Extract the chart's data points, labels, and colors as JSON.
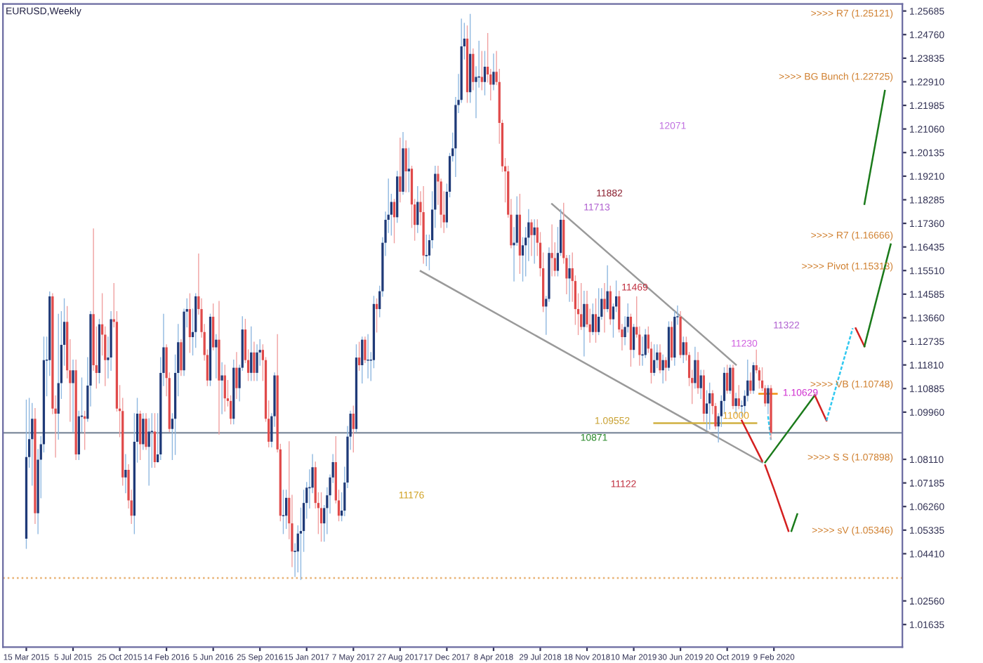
{
  "chart_data": {
    "type": "candlestick",
    "title": "EURUSD,Weekly",
    "xlim": [
      "2015-01-18",
      "2020-12-13"
    ],
    "ylim": [
      1.0075,
      1.2596
    ],
    "xticks": [
      {
        "value": "2015-03-15",
        "label": "15 Mar 2015"
      },
      {
        "value": "2015-07-05",
        "label": "5 Jul 2015"
      },
      {
        "value": "2015-10-25",
        "label": "25 Oct 2015"
      },
      {
        "value": "2016-02-14",
        "label": "14 Feb 2016"
      },
      {
        "value": "2016-06-05",
        "label": "5 Jun 2016"
      },
      {
        "value": "2016-09-25",
        "label": "25 Sep 2016"
      },
      {
        "value": "2017-01-15",
        "label": "15 Jan 2017"
      },
      {
        "value": "2017-05-07",
        "label": "7 May 2017"
      },
      {
        "value": "2017-08-27",
        "label": "27 Aug 2017"
      },
      {
        "value": "2017-12-17",
        "label": "17 Dec 2017"
      },
      {
        "value": "2018-04-08",
        "label": "8 Apr 2018"
      },
      {
        "value": "2018-07-29",
        "label": "29 Jul 2018"
      },
      {
        "value": "2018-11-18",
        "label": "18 Nov 2018"
      },
      {
        "value": "2019-03-10",
        "label": "10 Mar 2019"
      },
      {
        "value": "2019-06-30",
        "label": "30 Jun 2019"
      },
      {
        "value": "2019-10-20",
        "label": "20 Oct 2019"
      },
      {
        "value": "2020-02-09",
        "label": "9 Feb 2020"
      }
    ],
    "yticks": [
      {
        "value": 1.25685,
        "label": "1.25685"
      },
      {
        "value": 1.2476,
        "label": "1.24760"
      },
      {
        "value": 1.23835,
        "label": "1.23835"
      },
      {
        "value": 1.2291,
        "label": "1.22910"
      },
      {
        "value": 1.21985,
        "label": "1.21985"
      },
      {
        "value": 1.2106,
        "label": "1.21060"
      },
      {
        "value": 1.20135,
        "label": "1.20135"
      },
      {
        "value": 1.1921,
        "label": "1.19210"
      },
      {
        "value": 1.18285,
        "label": "1.18285"
      },
      {
        "value": 1.1736,
        "label": "1.17360"
      },
      {
        "value": 1.16435,
        "label": "1.16435"
      },
      {
        "value": 1.1551,
        "label": "1.15510"
      },
      {
        "value": 1.14585,
        "label": "1.14585"
      },
      {
        "value": 1.1366,
        "label": "1.13660"
      },
      {
        "value": 1.12735,
        "label": "1.12735"
      },
      {
        "value": 1.1181,
        "label": "1.11810"
      },
      {
        "value": 1.10885,
        "label": "1.10885"
      },
      {
        "value": 1.0996,
        "label": "1.09960"
      },
      {
        "value": 1.0811,
        "label": "1.08110"
      },
      {
        "value": 1.07185,
        "label": "1.07185"
      },
      {
        "value": 1.0626,
        "label": "1.06260"
      },
      {
        "value": 1.05335,
        "label": "1.05335"
      },
      {
        "value": 1.0441,
        "label": "1.04410"
      },
      {
        "value": 1.0256,
        "label": "1.02560"
      },
      {
        "value": 1.01635,
        "label": "1.01635"
      }
    ],
    "grid": false,
    "legend": false,
    "ref_lines": [
      {
        "axis": "y",
        "value": 1.0915,
        "color": "#8a96a6",
        "line_style": "solid"
      },
      {
        "axis": "y",
        "value": 1.0346,
        "color": "#e8b070",
        "line_style": "dotted"
      }
    ],
    "annotations": [
      "11882",
      "11713",
      "12071",
      "11469",
      "11322",
      "11230",
      {
        "text": "11000",
        "x": "2019-11-10",
        "y": 1.098
      },
      "10871",
      "11122",
      "11176",
      "1.09552",
      "1.10629",
      ">>>> R7 (1.25121)",
      ">>>> BG Bunch (1.22725)",
      ">>>> R7 (1.16666)",
      ">>>> Pivot (1.15313)",
      ">>>> VB (1.10748)",
      ">>>> S S (1.07898)",
      ">>>> sV (1.05346)"
    ],
    "series": [
      {
        "type": "line",
        "color": "#9a9a9a",
        "line_style": "solid",
        "x": [
          "2018-08-26",
          "2019-11-10"
        ],
        "values": [
          1.1812,
          1.1182
        ]
      },
      {
        "type": "line",
        "color": "#9a9a9a",
        "line_style": "solid",
        "x": [
          "2017-10-15",
          "2020-01-12"
        ],
        "values": [
          1.1549,
          1.0799
        ]
      },
      {
        "type": "line",
        "color": "#d0b040",
        "line_style": "solid",
        "x": [
          "2019-04-28",
          "2019-12-29"
        ],
        "values": [
          1.0953,
          1.0953
        ]
      },
      {
        "type": "line",
        "color": "#f09010",
        "line_style": "solid",
        "x": [
          "2020-01-05",
          "2020-02-16"
        ],
        "values": [
          1.1068,
          1.1068
        ]
      },
      {
        "type": "line",
        "color": "#d42020",
        "line_style": "solid",
        "x": [
          "2019-11-24",
          "2020-01-12"
        ],
        "values": [
          1.0963,
          1.0804
        ]
      },
      {
        "type": "line",
        "color": "#d42020",
        "line_style": "solid",
        "x": [
          "2020-01-19",
          "2020-02-09",
          "2020-03-15"
        ],
        "values": [
          1.0788,
          1.0695,
          1.053
        ]
      },
      {
        "type": "line",
        "color": "#1a7a1a",
        "line_style": "solid",
        "x": [
          "2020-03-22",
          "2020-04-05"
        ],
        "values": [
          1.053,
          1.0596
        ]
      },
      {
        "type": "line",
        "color": "#1a7a1a",
        "line_style": "solid",
        "x": [
          "2020-01-19",
          "2020-05-17"
        ],
        "values": [
          1.0799,
          1.1062
        ]
      },
      {
        "type": "line",
        "color": "#d42020",
        "line_style": "solid",
        "x": [
          "2020-05-17",
          "2020-06-14"
        ],
        "values": [
          1.1062,
          1.0963
        ]
      },
      {
        "type": "line",
        "color": "#30c8f0",
        "line_style": "dashed",
        "x": [
          "2020-06-14",
          "2020-08-16"
        ],
        "values": [
          1.0963,
          1.1325
        ]
      },
      {
        "type": "line",
        "color": "#d42020",
        "line_style": "solid",
        "x": [
          "2020-08-23",
          "2020-09-13"
        ],
        "values": [
          1.1325,
          1.1254
        ]
      },
      {
        "type": "line",
        "color": "#1a7a1a",
        "line_style": "solid",
        "x": [
          "2020-09-13",
          "2020-11-15"
        ],
        "values": [
          1.1254,
          1.1654
        ]
      },
      {
        "type": "line",
        "color": "#1a7a1a",
        "line_style": "solid",
        "x": [
          "2020-09-13",
          "2020-11-01"
        ],
        "values": [
          1.1812,
          1.2256
        ]
      },
      {
        "type": "line",
        "color": "#30c8f0",
        "line_style": "dashed",
        "x": [
          "2020-01-26",
          "2020-02-02"
        ],
        "values": [
          1.098,
          1.0887
        ]
      }
    ],
    "x": [
      "2015-03-15",
      "2015-03-22",
      "2015-03-29",
      "2015-04-05",
      "2015-04-12",
      "2015-04-19",
      "2015-04-26",
      "2015-05-03",
      "2015-05-10",
      "2015-05-17",
      "2015-05-24",
      "2015-05-31",
      "2015-06-07",
      "2015-06-14",
      "2015-06-21",
      "2015-06-28",
      "2015-07-05",
      "2015-07-12",
      "2015-07-19",
      "2015-07-26",
      "2015-08-02",
      "2015-08-09",
      "2015-08-16",
      "2015-08-23",
      "2015-08-30",
      "2015-09-06",
      "2015-09-13",
      "2015-09-20",
      "2015-09-27",
      "2015-10-04",
      "2015-10-11",
      "2015-10-18",
      "2015-10-25",
      "2015-11-01",
      "2015-11-08",
      "2015-11-15",
      "2015-11-22",
      "2015-11-29",
      "2015-12-06",
      "2015-12-13",
      "2015-12-20",
      "2015-12-27",
      "2016-01-03",
      "2016-01-10",
      "2016-01-17",
      "2016-01-24",
      "2016-01-31",
      "2016-02-07",
      "2016-02-14",
      "2016-02-21",
      "2016-02-28",
      "2016-03-06",
      "2016-03-13",
      "2016-03-20",
      "2016-03-27",
      "2016-04-03",
      "2016-04-10",
      "2016-04-17",
      "2016-04-24",
      "2016-05-01",
      "2016-05-08",
      "2016-05-15",
      "2016-05-22",
      "2016-05-29",
      "2016-06-05",
      "2016-06-12",
      "2016-06-19",
      "2016-06-26",
      "2016-07-03",
      "2016-07-10",
      "2016-07-17",
      "2016-07-24",
      "2016-07-31",
      "2016-08-07",
      "2016-08-14",
      "2016-08-21",
      "2016-08-28",
      "2016-09-04",
      "2016-09-11",
      "2016-09-18",
      "2016-09-25",
      "2016-10-02",
      "2016-10-09",
      "2016-10-16",
      "2016-10-23",
      "2016-10-30",
      "2016-11-06",
      "2016-11-13",
      "2016-11-20",
      "2016-11-27",
      "2016-12-04",
      "2016-12-11",
      "2016-12-18",
      "2016-12-25",
      "2017-01-01",
      "2017-01-08",
      "2017-01-15",
      "2017-01-22",
      "2017-01-29",
      "2017-02-05",
      "2017-02-12",
      "2017-02-19",
      "2017-02-26",
      "2017-03-05",
      "2017-03-12",
      "2017-03-19",
      "2017-03-26",
      "2017-04-02",
      "2017-04-09",
      "2017-04-16",
      "2017-04-23",
      "2017-04-30",
      "2017-05-07",
      "2017-05-14",
      "2017-05-21",
      "2017-05-28",
      "2017-06-04",
      "2017-06-11",
      "2017-06-18",
      "2017-06-25",
      "2017-07-02",
      "2017-07-09",
      "2017-07-16",
      "2017-07-23",
      "2017-07-30",
      "2017-08-06",
      "2017-08-13",
      "2017-08-20",
      "2017-08-27",
      "2017-09-03",
      "2017-09-10",
      "2017-09-17",
      "2017-09-24",
      "2017-10-01",
      "2017-10-08",
      "2017-10-15",
      "2017-10-22",
      "2017-10-29",
      "2017-11-05",
      "2017-11-12",
      "2017-11-19",
      "2017-11-26",
      "2017-12-03",
      "2017-12-10",
      "2017-12-17",
      "2017-12-24",
      "2017-12-31",
      "2018-01-07",
      "2018-01-14",
      "2018-01-21",
      "2018-01-28",
      "2018-02-04",
      "2018-02-11",
      "2018-02-18",
      "2018-02-25",
      "2018-03-04",
      "2018-03-11",
      "2018-03-18",
      "2018-03-25",
      "2018-04-01",
      "2018-04-08",
      "2018-04-15",
      "2018-04-22",
      "2018-04-29",
      "2018-05-06",
      "2018-05-13",
      "2018-05-20",
      "2018-05-27",
      "2018-06-03",
      "2018-06-10",
      "2018-06-17",
      "2018-06-24",
      "2018-07-01",
      "2018-07-08",
      "2018-07-15",
      "2018-07-22",
      "2018-07-29",
      "2018-08-05",
      "2018-08-12",
      "2018-08-19",
      "2018-08-26",
      "2018-09-02",
      "2018-09-09",
      "2018-09-16",
      "2018-09-23",
      "2018-09-30",
      "2018-10-07",
      "2018-10-14",
      "2018-10-21",
      "2018-10-28",
      "2018-11-04",
      "2018-11-11",
      "2018-11-18",
      "2018-11-25",
      "2018-12-02",
      "2018-12-09",
      "2018-12-16",
      "2018-12-23",
      "2018-12-30",
      "2019-01-06",
      "2019-01-13",
      "2019-01-20",
      "2019-01-27",
      "2019-02-03",
      "2019-02-10",
      "2019-02-17",
      "2019-02-24",
      "2019-03-03",
      "2019-03-10",
      "2019-03-17",
      "2019-03-24",
      "2019-03-31",
      "2019-04-07",
      "2019-04-14",
      "2019-04-21",
      "2019-04-28",
      "2019-05-05",
      "2019-05-12",
      "2019-05-19",
      "2019-05-26",
      "2019-06-02",
      "2019-06-09",
      "2019-06-16",
      "2019-06-23",
      "2019-06-30",
      "2019-07-07",
      "2019-07-14",
      "2019-07-21",
      "2019-07-28",
      "2019-08-04",
      "2019-08-11",
      "2019-08-18",
      "2019-08-25",
      "2019-09-01",
      "2019-09-08",
      "2019-09-15",
      "2019-09-22",
      "2019-09-29",
      "2019-10-06",
      "2019-10-13",
      "2019-10-20",
      "2019-10-27",
      "2019-11-03",
      "2019-11-10",
      "2019-11-17",
      "2019-11-24",
      "2019-12-01",
      "2019-12-08",
      "2019-12-15",
      "2019-12-22",
      "2019-12-29",
      "2020-01-05",
      "2020-01-12",
      "2020-01-19",
      "2020-01-26",
      "2020-02-02"
    ],
    "ohlc": [
      [
        1.05,
        1.1043,
        1.0462,
        1.082
      ],
      [
        1.082,
        1.105,
        1.078,
        1.089
      ],
      [
        1.089,
        1.103,
        1.071,
        1.097
      ],
      [
        1.097,
        1.101,
        1.056,
        1.06
      ],
      [
        1.06,
        1.085,
        1.052,
        1.081
      ],
      [
        1.081,
        1.09,
        1.066,
        1.087
      ],
      [
        1.087,
        1.129,
        1.084,
        1.12
      ],
      [
        1.12,
        1.129,
        1.106,
        1.12
      ],
      [
        1.12,
        1.1467,
        1.114,
        1.145
      ],
      [
        1.145,
        1.146,
        1.099,
        1.101
      ],
      [
        1.101,
        1.106,
        1.082,
        1.099
      ],
      [
        1.099,
        1.138,
        1.089,
        1.111
      ],
      [
        1.111,
        1.139,
        1.105,
        1.126
      ],
      [
        1.126,
        1.144,
        1.118,
        1.135
      ],
      [
        1.135,
        1.141,
        1.113,
        1.116
      ],
      [
        1.116,
        1.128,
        1.096,
        1.111
      ],
      [
        1.111,
        1.12,
        1.092,
        1.116
      ],
      [
        1.116,
        1.12,
        1.081,
        1.083
      ],
      [
        1.083,
        1.1,
        1.081,
        1.098
      ],
      [
        1.098,
        1.113,
        1.092,
        1.098
      ],
      [
        1.098,
        1.1,
        1.085,
        1.097
      ],
      [
        1.097,
        1.121,
        1.096,
        1.11
      ],
      [
        1.11,
        1.139,
        1.102,
        1.138
      ],
      [
        1.138,
        1.1714,
        1.116,
        1.118
      ],
      [
        1.118,
        1.133,
        1.109,
        1.115
      ],
      [
        1.115,
        1.136,
        1.111,
        1.134
      ],
      [
        1.134,
        1.146,
        1.122,
        1.13
      ],
      [
        1.13,
        1.133,
        1.11,
        1.12
      ],
      [
        1.12,
        1.129,
        1.113,
        1.121
      ],
      [
        1.121,
        1.139,
        1.116,
        1.136
      ],
      [
        1.136,
        1.15,
        1.133,
        1.135
      ],
      [
        1.135,
        1.139,
        1.1,
        1.101
      ],
      [
        1.101,
        1.11,
        1.09,
        1.1
      ],
      [
        1.1,
        1.105,
        1.071,
        1.074
      ],
      [
        1.074,
        1.083,
        1.068,
        1.077
      ],
      [
        1.077,
        1.079,
        1.062,
        1.065
      ],
      [
        1.065,
        1.069,
        1.056,
        1.059
      ],
      [
        1.059,
        1.099,
        1.052,
        1.088
      ],
      [
        1.088,
        1.105,
        1.08,
        1.099
      ],
      [
        1.099,
        1.1,
        1.081,
        1.087
      ],
      [
        1.087,
        1.099,
        1.085,
        1.097
      ],
      [
        1.097,
        1.099,
        1.085,
        1.086
      ],
      [
        1.086,
        1.097,
        1.071,
        1.092
      ],
      [
        1.092,
        1.099,
        1.078,
        1.092
      ],
      [
        1.092,
        1.099,
        1.078,
        1.08
      ],
      [
        1.08,
        1.099,
        1.08,
        1.083
      ],
      [
        1.083,
        1.121,
        1.081,
        1.115
      ],
      [
        1.115,
        1.138,
        1.11,
        1.125
      ],
      [
        1.125,
        1.126,
        1.106,
        1.113
      ],
      [
        1.113,
        1.115,
        1.092,
        1.093
      ],
      [
        1.093,
        1.099,
        1.081,
        1.097
      ],
      [
        1.097,
        1.122,
        1.083,
        1.115
      ],
      [
        1.115,
        1.134,
        1.106,
        1.127
      ],
      [
        1.127,
        1.128,
        1.114,
        1.116
      ],
      [
        1.116,
        1.14,
        1.114,
        1.139
      ],
      [
        1.139,
        1.144,
        1.133,
        1.14
      ],
      [
        1.14,
        1.146,
        1.123,
        1.129
      ],
      [
        1.129,
        1.14,
        1.122,
        1.131
      ],
      [
        1.131,
        1.146,
        1.125,
        1.145
      ],
      [
        1.145,
        1.1616,
        1.138,
        1.14
      ],
      [
        1.14,
        1.144,
        1.129,
        1.131
      ],
      [
        1.131,
        1.134,
        1.12,
        1.122
      ],
      [
        1.122,
        1.124,
        1.11,
        1.112
      ],
      [
        1.112,
        1.138,
        1.11,
        1.137
      ],
      [
        1.137,
        1.142,
        1.124,
        1.125
      ],
      [
        1.125,
        1.13,
        1.113,
        1.128
      ],
      [
        1.128,
        1.143,
        1.091,
        1.112
      ],
      [
        1.112,
        1.119,
        1.099,
        1.114
      ],
      [
        1.114,
        1.118,
        1.1,
        1.105
      ],
      [
        1.105,
        1.112,
        1.102,
        1.104
      ],
      [
        1.104,
        1.106,
        1.095,
        1.097
      ],
      [
        1.097,
        1.12,
        1.095,
        1.117
      ],
      [
        1.117,
        1.123,
        1.105,
        1.109
      ],
      [
        1.109,
        1.118,
        1.104,
        1.117
      ],
      [
        1.117,
        1.137,
        1.116,
        1.132
      ],
      [
        1.132,
        1.136,
        1.119,
        1.12
      ],
      [
        1.12,
        1.124,
        1.112,
        1.115
      ],
      [
        1.115,
        1.133,
        1.112,
        1.123
      ],
      [
        1.123,
        1.127,
        1.112,
        1.115
      ],
      [
        1.115,
        1.126,
        1.112,
        1.123
      ],
      [
        1.123,
        1.128,
        1.118,
        1.124
      ],
      [
        1.124,
        1.126,
        1.112,
        1.12
      ],
      [
        1.12,
        1.121,
        1.096,
        1.097
      ],
      [
        1.097,
        1.104,
        1.086,
        1.088
      ],
      [
        1.088,
        1.099,
        1.086,
        1.098
      ],
      [
        1.098,
        1.115,
        1.094,
        1.114
      ],
      [
        1.114,
        1.13,
        1.084,
        1.085
      ],
      [
        1.085,
        1.087,
        1.057,
        1.059
      ],
      [
        1.059,
        1.069,
        1.052,
        1.059
      ],
      [
        1.059,
        1.069,
        1.054,
        1.066
      ],
      [
        1.066,
        1.088,
        1.05,
        1.056
      ],
      [
        1.056,
        1.067,
        1.039,
        1.045
      ],
      [
        1.045,
        1.048,
        1.0352,
        1.045
      ],
      [
        1.045,
        1.055,
        1.037,
        1.052
      ],
      [
        1.052,
        1.062,
        1.034,
        1.053
      ],
      [
        1.053,
        1.069,
        1.045,
        1.064
      ],
      [
        1.064,
        1.072,
        1.058,
        1.07
      ],
      [
        1.07,
        1.077,
        1.062,
        1.07
      ],
      [
        1.07,
        1.083,
        1.068,
        1.078
      ],
      [
        1.078,
        1.08,
        1.062,
        1.064
      ],
      [
        1.064,
        1.068,
        1.052,
        1.062
      ],
      [
        1.062,
        1.068,
        1.049,
        1.056
      ],
      [
        1.056,
        1.063,
        1.049,
        1.062
      ],
      [
        1.062,
        1.07,
        1.052,
        1.067
      ],
      [
        1.067,
        1.075,
        1.06,
        1.074
      ],
      [
        1.074,
        1.083,
        1.072,
        1.08
      ],
      [
        1.08,
        1.09,
        1.064,
        1.065
      ],
      [
        1.065,
        1.069,
        1.057,
        1.059
      ],
      [
        1.059,
        1.068,
        1.057,
        1.061
      ],
      [
        1.061,
        1.078,
        1.059,
        1.072
      ],
      [
        1.072,
        1.094,
        1.07,
        1.09
      ],
      [
        1.09,
        1.1,
        1.085,
        1.099
      ],
      [
        1.099,
        1.102,
        1.084,
        1.093
      ],
      [
        1.093,
        1.126,
        1.092,
        1.121
      ],
      [
        1.121,
        1.127,
        1.116,
        1.118
      ],
      [
        1.118,
        1.129,
        1.111,
        1.128
      ],
      [
        1.128,
        1.129,
        1.119,
        1.12
      ],
      [
        1.12,
        1.13,
        1.113,
        1.12
      ],
      [
        1.12,
        1.123,
        1.112,
        1.12
      ],
      [
        1.12,
        1.145,
        1.117,
        1.142
      ],
      [
        1.142,
        1.144,
        1.131,
        1.14
      ],
      [
        1.14,
        1.149,
        1.137,
        1.147
      ],
      [
        1.147,
        1.168,
        1.145,
        1.166
      ],
      [
        1.166,
        1.178,
        1.161,
        1.175
      ],
      [
        1.175,
        1.191,
        1.17,
        1.177
      ],
      [
        1.177,
        1.185,
        1.169,
        1.182
      ],
      [
        1.182,
        1.183,
        1.166,
        1.176
      ],
      [
        1.176,
        1.194,
        1.174,
        1.192
      ],
      [
        1.192,
        1.207,
        1.182,
        1.186
      ],
      [
        1.186,
        1.2092,
        1.185,
        1.203
      ],
      [
        1.203,
        1.206,
        1.186,
        1.194
      ],
      [
        1.194,
        1.203,
        1.186,
        1.195
      ],
      [
        1.195,
        1.196,
        1.172,
        1.181
      ],
      [
        1.181,
        1.183,
        1.167,
        1.173
      ],
      [
        1.173,
        1.188,
        1.17,
        1.182
      ],
      [
        1.182,
        1.186,
        1.173,
        1.178
      ],
      [
        1.178,
        1.188,
        1.158,
        1.161
      ],
      [
        1.161,
        1.169,
        1.157,
        1.161
      ],
      [
        1.161,
        1.169,
        1.1554,
        1.167
      ],
      [
        1.167,
        1.186,
        1.164,
        1.179
      ],
      [
        1.179,
        1.196,
        1.172,
        1.193
      ],
      [
        1.193,
        1.196,
        1.181,
        1.19
      ],
      [
        1.19,
        1.191,
        1.172,
        1.177
      ],
      [
        1.177,
        1.186,
        1.17,
        1.174
      ],
      [
        1.174,
        1.189,
        1.172,
        1.186
      ],
      [
        1.186,
        1.201,
        1.184,
        1.2
      ],
      [
        1.2,
        1.209,
        1.198,
        1.203
      ],
      [
        1.203,
        1.223,
        1.192,
        1.22
      ],
      [
        1.22,
        1.232,
        1.217,
        1.222
      ],
      [
        1.222,
        1.2537,
        1.221,
        1.243
      ],
      [
        1.243,
        1.252,
        1.238,
        1.246
      ],
      [
        1.246,
        1.251,
        1.221,
        1.225
      ],
      [
        1.225,
        1.2555,
        1.221,
        1.24
      ],
      [
        1.24,
        1.242,
        1.226,
        1.229
      ],
      [
        1.229,
        1.235,
        1.215,
        1.231
      ],
      [
        1.231,
        1.245,
        1.227,
        1.231
      ],
      [
        1.231,
        1.241,
        1.226,
        1.229
      ],
      [
        1.229,
        1.241,
        1.224,
        1.235
      ],
      [
        1.235,
        1.248,
        1.229,
        1.232
      ],
      [
        1.232,
        1.234,
        1.222,
        1.228
      ],
      [
        1.228,
        1.24,
        1.226,
        1.233
      ],
      [
        1.233,
        1.241,
        1.228,
        1.229
      ],
      [
        1.229,
        1.234,
        1.205,
        1.213
      ],
      [
        1.213,
        1.214,
        1.194,
        1.196
      ],
      [
        1.196,
        1.199,
        1.182,
        1.194
      ],
      [
        1.194,
        1.196,
        1.176,
        1.177
      ],
      [
        1.177,
        1.183,
        1.164,
        1.165
      ],
      [
        1.165,
        1.172,
        1.151,
        1.166
      ],
      [
        1.166,
        1.184,
        1.165,
        1.177
      ],
      [
        1.177,
        1.185,
        1.154,
        1.161
      ],
      [
        1.161,
        1.168,
        1.151,
        1.165
      ],
      [
        1.165,
        1.172,
        1.153,
        1.168
      ],
      [
        1.168,
        1.179,
        1.159,
        1.174
      ],
      [
        1.174,
        1.175,
        1.161,
        1.169
      ],
      [
        1.169,
        1.175,
        1.158,
        1.172
      ],
      [
        1.172,
        1.175,
        1.161,
        1.166
      ],
      [
        1.166,
        1.17,
        1.153,
        1.156
      ],
      [
        1.156,
        1.162,
        1.139,
        1.141
      ],
      [
        1.141,
        1.145,
        1.1301,
        1.144
      ],
      [
        1.144,
        1.164,
        1.143,
        1.162
      ],
      [
        1.162,
        1.173,
        1.153,
        1.16
      ],
      [
        1.16,
        1.166,
        1.153,
        1.155
      ],
      [
        1.155,
        1.172,
        1.153,
        1.162
      ],
      [
        1.162,
        1.179,
        1.161,
        1.175
      ],
      [
        1.175,
        1.1815,
        1.158,
        1.16
      ],
      [
        1.16,
        1.161,
        1.146,
        1.152
      ],
      [
        1.152,
        1.161,
        1.143,
        1.156
      ],
      [
        1.156,
        1.162,
        1.143,
        1.151
      ],
      [
        1.151,
        1.153,
        1.134,
        1.14
      ],
      [
        1.14,
        1.146,
        1.13,
        1.138
      ],
      [
        1.138,
        1.15,
        1.132,
        1.133
      ],
      [
        1.133,
        1.147,
        1.1216,
        1.142
      ],
      [
        1.142,
        1.147,
        1.133,
        1.134
      ],
      [
        1.134,
        1.14,
        1.127,
        1.131
      ],
      [
        1.131,
        1.142,
        1.13,
        1.138
      ],
      [
        1.138,
        1.144,
        1.127,
        1.131
      ],
      [
        1.131,
        1.148,
        1.13,
        1.137
      ],
      [
        1.137,
        1.148,
        1.136,
        1.144
      ],
      [
        1.144,
        1.15,
        1.131,
        1.14
      ],
      [
        1.14,
        1.157,
        1.139,
        1.147
      ],
      [
        1.147,
        1.149,
        1.134,
        1.136
      ],
      [
        1.136,
        1.142,
        1.129,
        1.141
      ],
      [
        1.141,
        1.151,
        1.139,
        1.145
      ],
      [
        1.145,
        1.147,
        1.131,
        1.132
      ],
      [
        1.132,
        1.134,
        1.124,
        1.129
      ],
      [
        1.129,
        1.137,
        1.126,
        1.133
      ],
      [
        1.133,
        1.142,
        1.131,
        1.137
      ],
      [
        1.137,
        1.138,
        1.1176,
        1.124
      ],
      [
        1.124,
        1.134,
        1.121,
        1.133
      ],
      [
        1.133,
        1.1448,
        1.129,
        1.13
      ],
      [
        1.13,
        1.133,
        1.118,
        1.122
      ],
      [
        1.122,
        1.129,
        1.118,
        1.122
      ],
      [
        1.122,
        1.132,
        1.121,
        1.13
      ],
      [
        1.13,
        1.133,
        1.123,
        1.1245
      ],
      [
        1.1245,
        1.127,
        1.111,
        1.115
      ],
      [
        1.115,
        1.126,
        1.114,
        1.12
      ],
      [
        1.12,
        1.126,
        1.117,
        1.123
      ],
      [
        1.123,
        1.126,
        1.115,
        1.116
      ],
      [
        1.116,
        1.122,
        1.111,
        1.12
      ],
      [
        1.12,
        1.121,
        1.112,
        1.117
      ],
      [
        1.117,
        1.135,
        1.116,
        1.133
      ],
      [
        1.133,
        1.135,
        1.12,
        1.121
      ],
      [
        1.121,
        1.139,
        1.118,
        1.137
      ],
      [
        1.137,
        1.1412,
        1.134,
        1.137
      ],
      [
        1.137,
        1.139,
        1.121,
        1.122
      ],
      [
        1.122,
        1.129,
        1.119,
        1.127
      ],
      [
        1.127,
        1.129,
        1.12,
        1.122
      ],
      [
        1.122,
        1.123,
        1.11,
        1.113
      ],
      [
        1.113,
        1.116,
        1.103,
        1.111
      ],
      [
        1.111,
        1.125,
        1.109,
        1.12
      ],
      [
        1.12,
        1.123,
        1.107,
        1.109
      ],
      [
        1.109,
        1.116,
        1.105,
        1.114
      ],
      [
        1.114,
        1.116,
        1.096,
        1.099
      ],
      [
        1.099,
        1.108,
        1.0926,
        1.103
      ],
      [
        1.103,
        1.111,
        1.093,
        1.107
      ],
      [
        1.107,
        1.108,
        1.099,
        1.102
      ],
      [
        1.102,
        1.103,
        1.093,
        1.094
      ],
      [
        1.094,
        1.099,
        1.0879,
        1.098
      ],
      [
        1.098,
        1.106,
        1.094,
        1.104
      ],
      [
        1.104,
        1.117,
        1.099,
        1.115
      ],
      [
        1.115,
        1.118,
        1.107,
        1.108
      ],
      [
        1.108,
        1.118,
        1.107,
        1.117
      ],
      [
        1.117,
        1.118,
        1.101,
        1.102
      ],
      [
        1.102,
        1.107,
        1.099,
        1.105
      ],
      [
        1.105,
        1.11,
        1.101,
        1.102
      ],
      [
        1.102,
        1.104,
        1.098,
        1.102
      ],
      [
        1.102,
        1.108,
        1.099,
        1.106
      ],
      [
        1.106,
        1.12,
        1.104,
        1.112
      ],
      [
        1.112,
        1.115,
        1.107,
        1.108
      ],
      [
        1.108,
        1.119,
        1.107,
        1.118
      ],
      [
        1.118,
        1.1239,
        1.115,
        1.116
      ],
      [
        1.116,
        1.117,
        1.109,
        1.112
      ],
      [
        1.112,
        1.117,
        1.108,
        1.109
      ],
      [
        1.109,
        1.11,
        1.102,
        1.103
      ],
      [
        1.103,
        1.11,
        1.099,
        1.109
      ],
      [
        1.109,
        1.11,
        1.089,
        1.0915
      ]
    ]
  }
}
